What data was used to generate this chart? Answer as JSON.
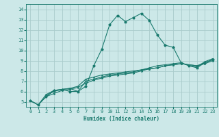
{
  "xlabel": "Humidex (Indice chaleur)",
  "ylabel": "",
  "xlim": [
    -0.5,
    23.5
  ],
  "ylim": [
    4.5,
    14.5
  ],
  "yticks": [
    5,
    6,
    7,
    8,
    9,
    10,
    11,
    12,
    13,
    14
  ],
  "xticks": [
    0,
    1,
    2,
    3,
    4,
    5,
    6,
    7,
    8,
    9,
    10,
    11,
    12,
    13,
    14,
    15,
    16,
    17,
    18,
    19,
    20,
    21,
    22,
    23
  ],
  "bg_color": "#cce8e8",
  "grid_color": "#aacccc",
  "line_color": "#1a7a6e",
  "line1_x": [
    0,
    1,
    2,
    3,
    4,
    5,
    6,
    7,
    8,
    9,
    10,
    11,
    12,
    13,
    14,
    15,
    16,
    17,
    18,
    19,
    20,
    21,
    22,
    23
  ],
  "line1_y": [
    5.1,
    4.7,
    5.5,
    6.1,
    6.2,
    6.0,
    6.0,
    6.5,
    8.5,
    10.1,
    12.5,
    13.4,
    12.8,
    13.2,
    13.6,
    12.9,
    11.5,
    10.5,
    10.3,
    8.8,
    8.5,
    8.3,
    8.8,
    9.1
  ],
  "line2_x": [
    0,
    1,
    2,
    3,
    4,
    5,
    6,
    7,
    8,
    9,
    10,
    11,
    12,
    13,
    14,
    15,
    16,
    17,
    18,
    19,
    20,
    21,
    22,
    23
  ],
  "line2_y": [
    5.1,
    4.7,
    5.5,
    5.8,
    6.1,
    6.2,
    6.4,
    6.8,
    7.1,
    7.3,
    7.5,
    7.6,
    7.7,
    7.8,
    8.0,
    8.2,
    8.3,
    8.5,
    8.6,
    8.7,
    8.6,
    8.5,
    8.7,
    9.0
  ],
  "line3_x": [
    0,
    1,
    2,
    3,
    4,
    5,
    6,
    7,
    8,
    9,
    10,
    11,
    12,
    13,
    14,
    15,
    16,
    17,
    18,
    19,
    20,
    21,
    22,
    23
  ],
  "line3_y": [
    5.1,
    4.7,
    5.7,
    6.1,
    6.2,
    6.3,
    6.0,
    7.0,
    7.2,
    7.4,
    7.6,
    7.7,
    7.8,
    7.9,
    8.1,
    8.3,
    8.5,
    8.6,
    8.7,
    8.8,
    8.5,
    8.4,
    8.9,
    9.2
  ],
  "line4_x": [
    2,
    3,
    4,
    5,
    6,
    7,
    8,
    9,
    10,
    11,
    12,
    13,
    14,
    15,
    16,
    17,
    18,
    19,
    20,
    21,
    22,
    23
  ],
  "line4_y": [
    5.6,
    6.0,
    6.2,
    6.3,
    6.5,
    7.2,
    7.4,
    7.6,
    7.7,
    7.8,
    7.9,
    8.0,
    8.1,
    8.2,
    8.3,
    8.5,
    8.6,
    8.7,
    8.6,
    8.5,
    8.8,
    9.1
  ]
}
